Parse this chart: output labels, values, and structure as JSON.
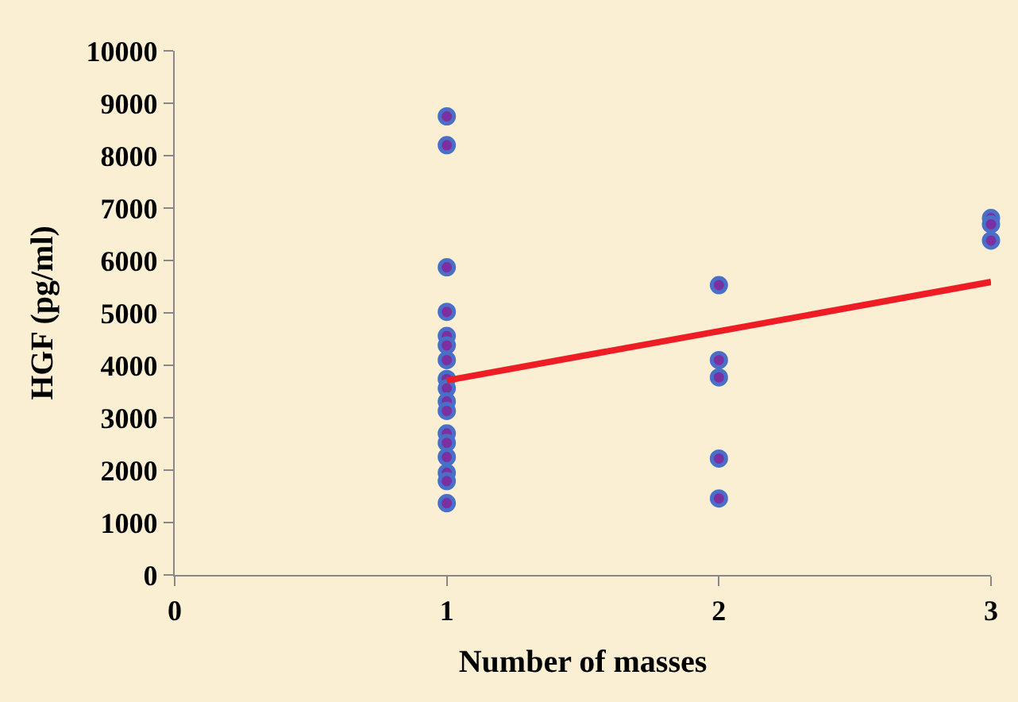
{
  "chart_data": {
    "type": "scatter",
    "xlabel": "Number of masses",
    "ylabel": "HGF (pg/ml)",
    "xlim": [
      0,
      3
    ],
    "xticks": [
      0,
      1,
      2,
      3
    ],
    "ylim": [
      0,
      10000
    ],
    "yticks": [
      0,
      1000,
      2000,
      3000,
      4000,
      5000,
      6000,
      7000,
      8000,
      9000,
      10000
    ],
    "grid": false,
    "marker": "circle",
    "series": [
      {
        "color": "#4a6fc8",
        "x": [
          1,
          1,
          1,
          1,
          1,
          1,
          1,
          1,
          1,
          1,
          1,
          1,
          1,
          1,
          1,
          1,
          1,
          2,
          2,
          2,
          2,
          2,
          3,
          3,
          3
        ],
        "values": [
          8750,
          8200,
          5870,
          5020,
          4560,
          4380,
          4100,
          3740,
          3560,
          3310,
          3130,
          2700,
          2520,
          2250,
          1950,
          1790,
          1370,
          5530,
          4100,
          3770,
          2220,
          1460,
          6810,
          6690,
          6380
        ]
      },
      {
        "type": "line",
        "marker": "none",
        "color": "#ee1c24",
        "x": [
          1,
          3
        ],
        "values": [
          3710,
          5590
        ]
      }
    ]
  }
}
